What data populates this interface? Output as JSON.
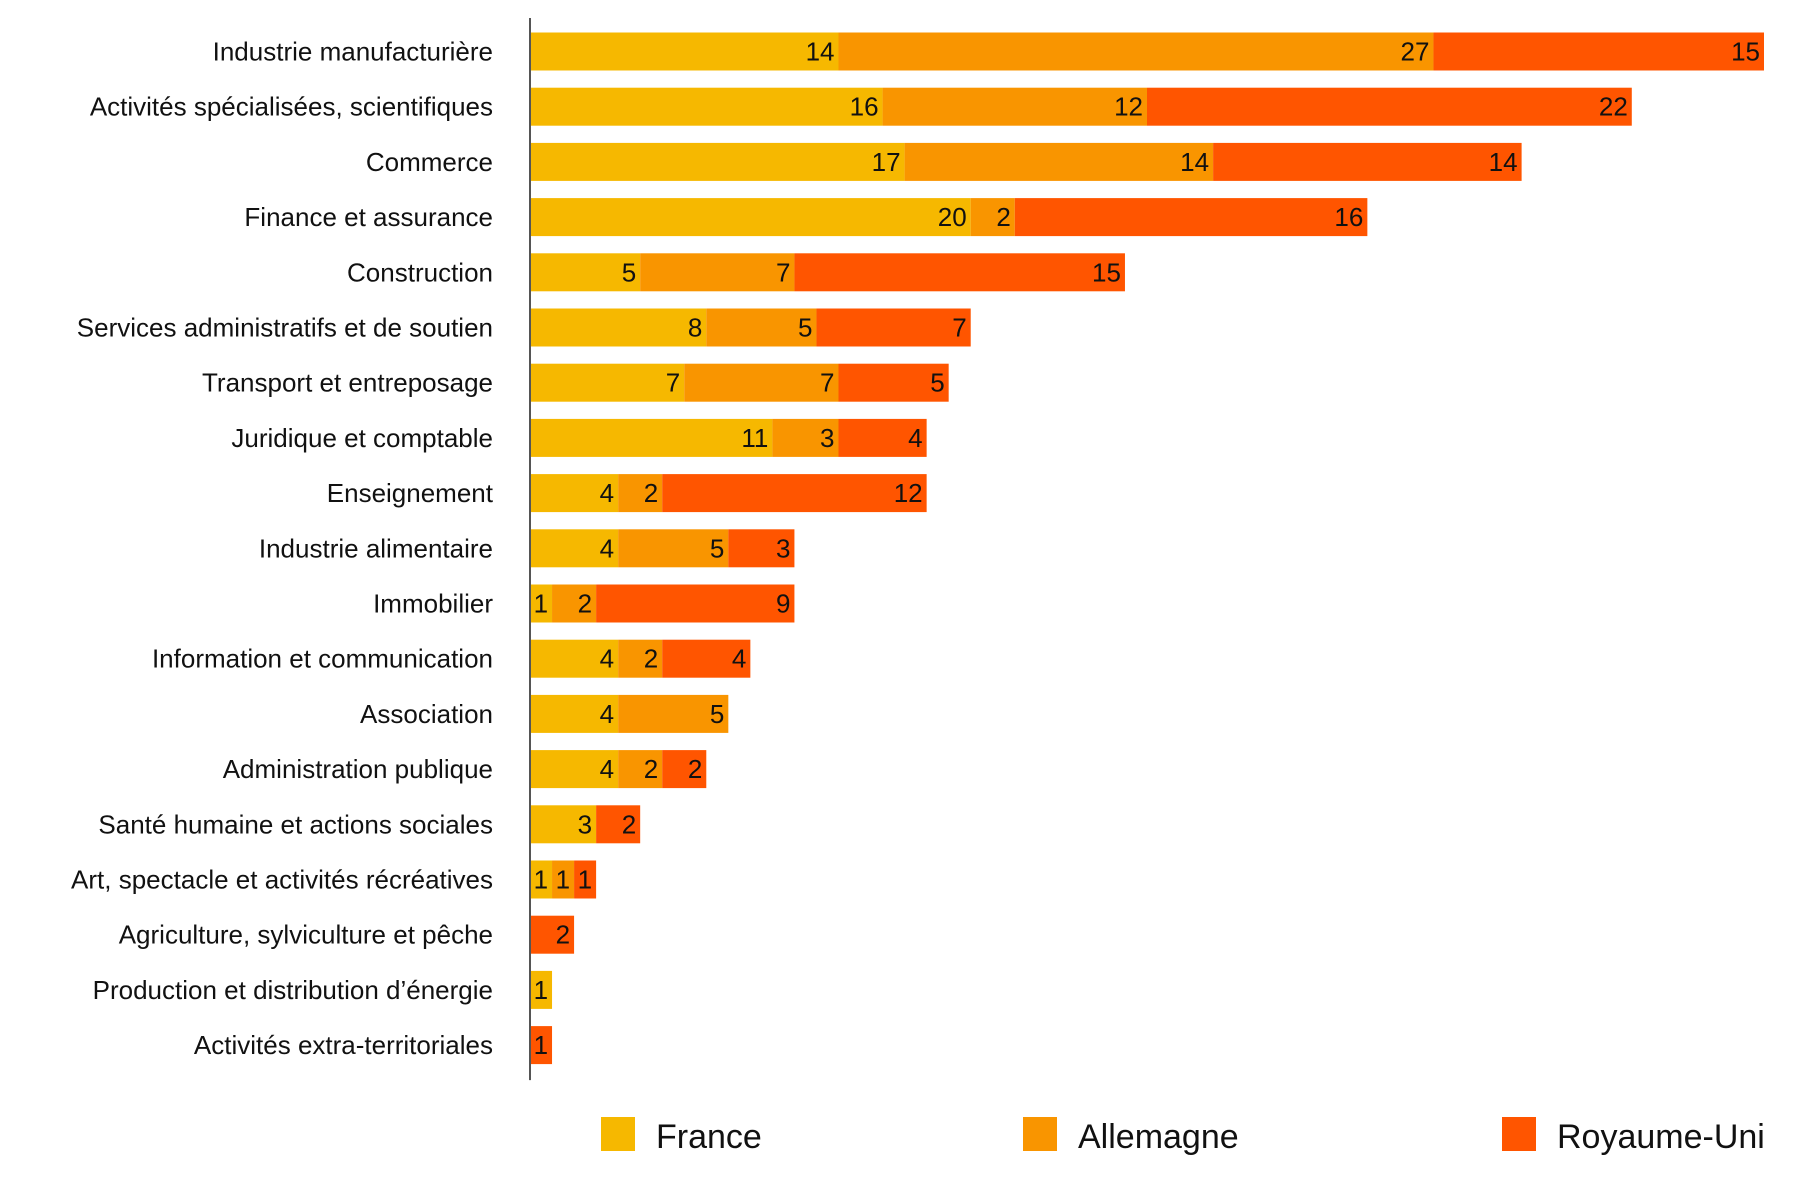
{
  "chart_data": {
    "type": "bar",
    "orientation": "horizontal",
    "stacked": true,
    "grid": false,
    "legend_position": "bottom",
    "categories": [
      "Industrie manufacturière",
      "Activités spécialisées, scientifiques",
      "Commerce",
      "Finance et assurance",
      "Construction",
      "Services administratifs et de soutien",
      "Transport et entreposage",
      "Juridique et comptable",
      "Enseignement",
      "Industrie alimentaire",
      "Immobilier",
      "Information et communication",
      "Association",
      "Administration publique",
      "Santé humaine et actions sociales",
      "Art, spectacle et activités récréatives",
      "Agriculture, sylviculture et pêche",
      "Production et distribution d’énergie",
      "Activités extra-territoriales"
    ],
    "series": [
      {
        "name": "France",
        "color": "#F6B800",
        "values": [
          14,
          16,
          17,
          20,
          5,
          8,
          7,
          11,
          4,
          4,
          1,
          4,
          4,
          4,
          3,
          1,
          0,
          1,
          0
        ]
      },
      {
        "name": "Allemagne",
        "color": "#F99500",
        "values": [
          27,
          12,
          14,
          2,
          7,
          5,
          7,
          3,
          2,
          5,
          2,
          2,
          5,
          2,
          0,
          1,
          0,
          0,
          0
        ]
      },
      {
        "name": "Royaume-Uni",
        "color": "#FF5500",
        "values": [
          15,
          22,
          14,
          16,
          15,
          7,
          5,
          4,
          12,
          3,
          9,
          4,
          0,
          2,
          2,
          1,
          2,
          0,
          1
        ]
      }
    ],
    "xlim": [
      0,
      56
    ]
  }
}
